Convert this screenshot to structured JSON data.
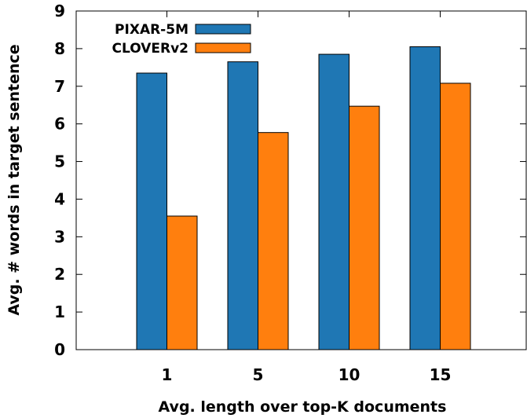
{
  "chart_data": {
    "type": "bar",
    "categories": [
      "1",
      "5",
      "10",
      "15"
    ],
    "series": [
      {
        "name": "PIXAR-5M",
        "values": [
          7.35,
          7.65,
          7.85,
          8.05
        ],
        "color": "#1f77b4"
      },
      {
        "name": "CLOVERv2",
        "values": [
          3.55,
          5.77,
          6.47,
          7.08
        ],
        "color": "#ff7f0e"
      }
    ],
    "xlabel": "Avg. length over top-K documents",
    "ylabel": "Avg. # words in target sentence",
    "ylim": [
      0,
      9
    ],
    "yticks": [
      "0",
      "1",
      "2",
      "3",
      "4",
      "5",
      "6",
      "7",
      "8",
      "9"
    ],
    "grid": false,
    "legend_position": "top-left"
  }
}
